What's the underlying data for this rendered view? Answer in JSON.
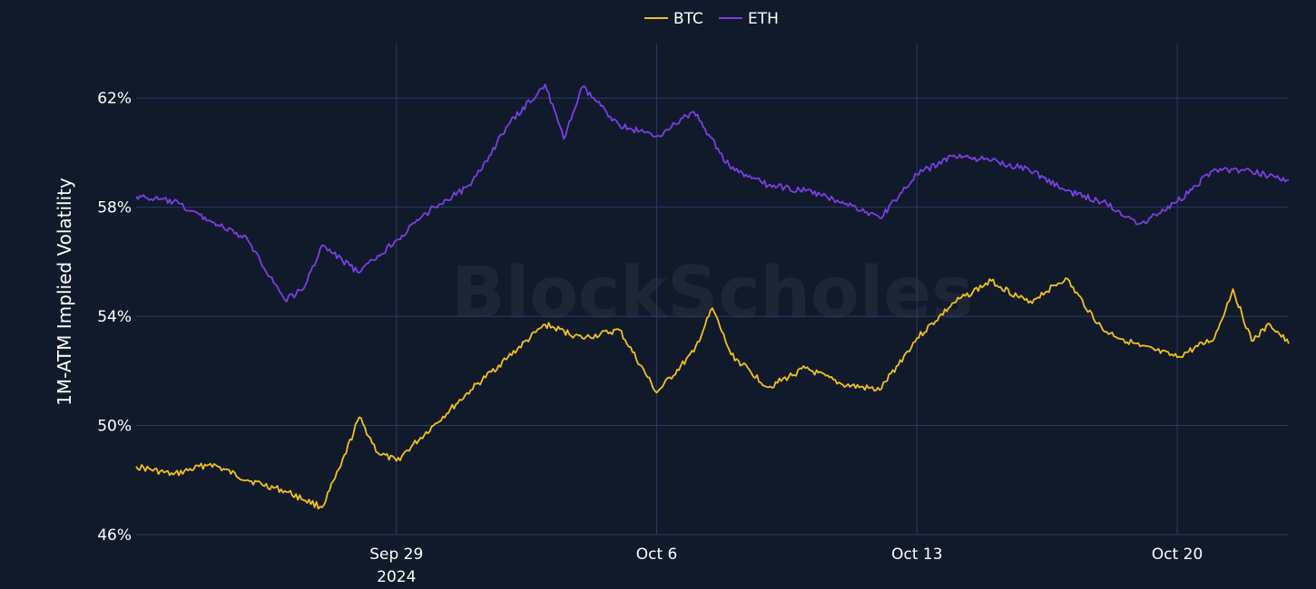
{
  "colors": {
    "background": "#111a2b",
    "grid": "#2a3a66",
    "text": "#ffffff",
    "btc": "#f2c21b",
    "eth": "#7b3fe4",
    "watermark": "#2a3040"
  },
  "watermark": "BlockScholes",
  "chart_data": {
    "type": "line",
    "title": "",
    "xlabel": "",
    "ylabel": "1M-ATM Implied Volatility",
    "x_range": [
      "2024-09-22",
      "2024-10-23"
    ],
    "ylim": [
      46,
      64
    ],
    "y_ticks": [
      46,
      50,
      54,
      58,
      62
    ],
    "y_tick_labels": [
      "46%",
      "50%",
      "54%",
      "58%",
      "62%"
    ],
    "x_ticks": [
      "2024-09-29",
      "2024-10-06",
      "2024-10-13",
      "2024-10-20"
    ],
    "x_tick_labels": [
      "Sep 29",
      "Oct 6",
      "Oct 13",
      "Oct 20"
    ],
    "x_tick_sublabel": "2024",
    "grid": true,
    "legend_position": "top-center",
    "series": [
      {
        "name": "BTC",
        "color": "#f2c21b",
        "points": [
          [
            "2024-09-22",
            48.5
          ],
          [
            "2024-09-23",
            48.2
          ],
          [
            "2024-09-24",
            48.6
          ],
          [
            "2024-09-25",
            48.0
          ],
          [
            "2024-09-26",
            47.6
          ],
          [
            "2024-09-27",
            47.0
          ],
          [
            "2024-09-27 12:00",
            48.5
          ],
          [
            "2024-09-28",
            50.3
          ],
          [
            "2024-09-28 12:00",
            49.0
          ],
          [
            "2024-09-29",
            48.7
          ],
          [
            "2024-09-30",
            50.0
          ],
          [
            "2024-10-01",
            51.3
          ],
          [
            "2024-10-02",
            52.5
          ],
          [
            "2024-10-03",
            53.7
          ],
          [
            "2024-10-04",
            53.2
          ],
          [
            "2024-10-05",
            53.5
          ],
          [
            "2024-10-06",
            51.2
          ],
          [
            "2024-10-07",
            52.7
          ],
          [
            "2024-10-07 12:00",
            54.3
          ],
          [
            "2024-10-08",
            52.6
          ],
          [
            "2024-10-09",
            51.4
          ],
          [
            "2024-10-10",
            52.1
          ],
          [
            "2024-10-11",
            51.5
          ],
          [
            "2024-10-12",
            51.3
          ],
          [
            "2024-10-13",
            53.2
          ],
          [
            "2024-10-14",
            54.5
          ],
          [
            "2024-10-15",
            55.3
          ],
          [
            "2024-10-16",
            54.5
          ],
          [
            "2024-10-17",
            55.4
          ],
          [
            "2024-10-18",
            53.5
          ],
          [
            "2024-10-19",
            52.9
          ],
          [
            "2024-10-20",
            52.5
          ],
          [
            "2024-10-21",
            53.2
          ],
          [
            "2024-10-21 12:00",
            55.0
          ],
          [
            "2024-10-22",
            53.1
          ],
          [
            "2024-10-22 12:00",
            53.7
          ],
          [
            "2024-10-23",
            53.0
          ]
        ]
      },
      {
        "name": "ETH",
        "color": "#7b3fe4",
        "points": [
          [
            "2024-09-22",
            58.4
          ],
          [
            "2024-09-23",
            58.2
          ],
          [
            "2024-09-24",
            57.5
          ],
          [
            "2024-09-25",
            56.8
          ],
          [
            "2024-09-26",
            54.6
          ],
          [
            "2024-09-26 12:00",
            55.0
          ],
          [
            "2024-09-27",
            56.6
          ],
          [
            "2024-09-28",
            55.6
          ],
          [
            "2024-09-29",
            56.8
          ],
          [
            "2024-09-30",
            58.0
          ],
          [
            "2024-10-01",
            58.8
          ],
          [
            "2024-10-02",
            61.0
          ],
          [
            "2024-10-03",
            62.5
          ],
          [
            "2024-10-03 12:00",
            60.5
          ],
          [
            "2024-10-04",
            62.4
          ],
          [
            "2024-10-05",
            61.0
          ],
          [
            "2024-10-06",
            60.6
          ],
          [
            "2024-10-07",
            61.5
          ],
          [
            "2024-10-08",
            59.4
          ],
          [
            "2024-10-09",
            58.8
          ],
          [
            "2024-10-10",
            58.6
          ],
          [
            "2024-10-11",
            58.2
          ],
          [
            "2024-10-12",
            57.6
          ],
          [
            "2024-10-13",
            59.2
          ],
          [
            "2024-10-14",
            59.9
          ],
          [
            "2024-10-15",
            59.7
          ],
          [
            "2024-10-16",
            59.4
          ],
          [
            "2024-10-17",
            58.6
          ],
          [
            "2024-10-18",
            58.2
          ],
          [
            "2024-10-19",
            57.4
          ],
          [
            "2024-10-20",
            58.2
          ],
          [
            "2024-10-21",
            59.4
          ],
          [
            "2024-10-22",
            59.3
          ],
          [
            "2024-10-23",
            59.0
          ]
        ]
      }
    ]
  }
}
